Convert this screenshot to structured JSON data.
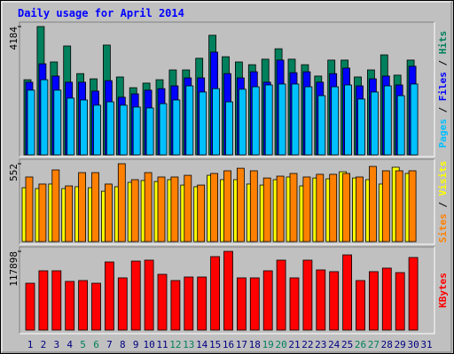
{
  "title": "Daily usage for April 2014",
  "legend_separator": " / ",
  "chart_data": [
    {
      "type": "bar",
      "ylim": [
        0,
        4184
      ],
      "yticks": [
        4184
      ],
      "series": [
        {
          "name": "Hits",
          "color": "#00805c",
          "values": [
            2450,
            4184,
            3030,
            3550,
            2650,
            2480,
            3580,
            2540,
            2190,
            2340,
            2450,
            2770,
            2770,
            3150,
            3900,
            3200,
            3030,
            2940,
            3120,
            3460,
            3120,
            2940,
            2570,
            3090,
            3090,
            2540,
            2770,
            3260,
            2600,
            3090,
            null
          ]
        },
        {
          "name": "Files",
          "color": "#0000ff",
          "values": [
            2370,
            2970,
            2570,
            2370,
            2370,
            2080,
            2420,
            1880,
            1990,
            2110,
            2160,
            2250,
            2510,
            2510,
            3350,
            2650,
            2510,
            2710,
            2370,
            3090,
            2680,
            2710,
            2370,
            2650,
            2830,
            2250,
            2480,
            2570,
            2280,
            2890,
            null
          ]
        },
        {
          "name": "Pages",
          "color": "#00c0ff",
          "values": [
            2110,
            2450,
            2110,
            1850,
            1790,
            1620,
            1730,
            1620,
            1560,
            1530,
            1670,
            1790,
            2250,
            2050,
            2160,
            1730,
            2140,
            2220,
            2280,
            2310,
            2310,
            2220,
            1930,
            2220,
            2280,
            1820,
            2050,
            2250,
            1930,
            2310,
            null
          ]
        }
      ]
    },
    {
      "type": "bar",
      "ylim": [
        0,
        552
      ],
      "yticks": [
        552
      ],
      "series": [
        {
          "name": "Visits",
          "color": "#ffff00",
          "values": [
            382,
            376,
            408,
            376,
            389,
            382,
            357,
            389,
            420,
            433,
            426,
            439,
            401,
            389,
            470,
            439,
            439,
            408,
            401,
            439,
            458,
            395,
            451,
            445,
            495,
            451,
            439,
            408,
            527,
            483,
            null
          ]
        },
        {
          "name": "Sites",
          "color": "#ff8000",
          "values": [
            458,
            408,
            508,
            395,
            489,
            489,
            408,
            552,
            439,
            489,
            458,
            458,
            470,
            401,
            483,
            502,
            520,
            502,
            451,
            464,
            483,
            458,
            477,
            477,
            483,
            458,
            533,
            502,
            502,
            502,
            null
          ]
        }
      ]
    },
    {
      "type": "bar",
      "ylim": [
        0,
        117898
      ],
      "yticks": [
        117898
      ],
      "categories": [
        "1",
        "2",
        "3",
        "4",
        "5",
        "6",
        "7",
        "8",
        "9",
        "10",
        "11",
        "12",
        "13",
        "14",
        "15",
        "16",
        "17",
        "18",
        "19",
        "20",
        "21",
        "22",
        "23",
        "24",
        "25",
        "26",
        "27",
        "28",
        "29",
        "30",
        "31"
      ],
      "category_colors": [
        "#000080",
        "#000080",
        "#000080",
        "#000080",
        "#00805c",
        "#00805c",
        "#000080",
        "#000080",
        "#000080",
        "#000080",
        "#000080",
        "#00805c",
        "#00805c",
        "#000080",
        "#000080",
        "#000080",
        "#000080",
        "#000080",
        "#00805c",
        "#00805c",
        "#000080",
        "#000080",
        "#000080",
        "#000080",
        "#000080",
        "#00805c",
        "#00805c",
        "#000080",
        "#000080",
        "#000080",
        "#000080"
      ],
      "series": [
        {
          "name": "KBytes",
          "color": "#ff0000",
          "values": [
            70200,
            88800,
            88800,
            72900,
            74200,
            70200,
            102000,
            78200,
            103300,
            104700,
            83500,
            74200,
            79500,
            79500,
            110000,
            117898,
            78200,
            78200,
            88800,
            104700,
            78200,
            104700,
            90100,
            87500,
            112600,
            74200,
            87500,
            92800,
            86100,
            108700,
            null
          ]
        }
      ]
    }
  ]
}
